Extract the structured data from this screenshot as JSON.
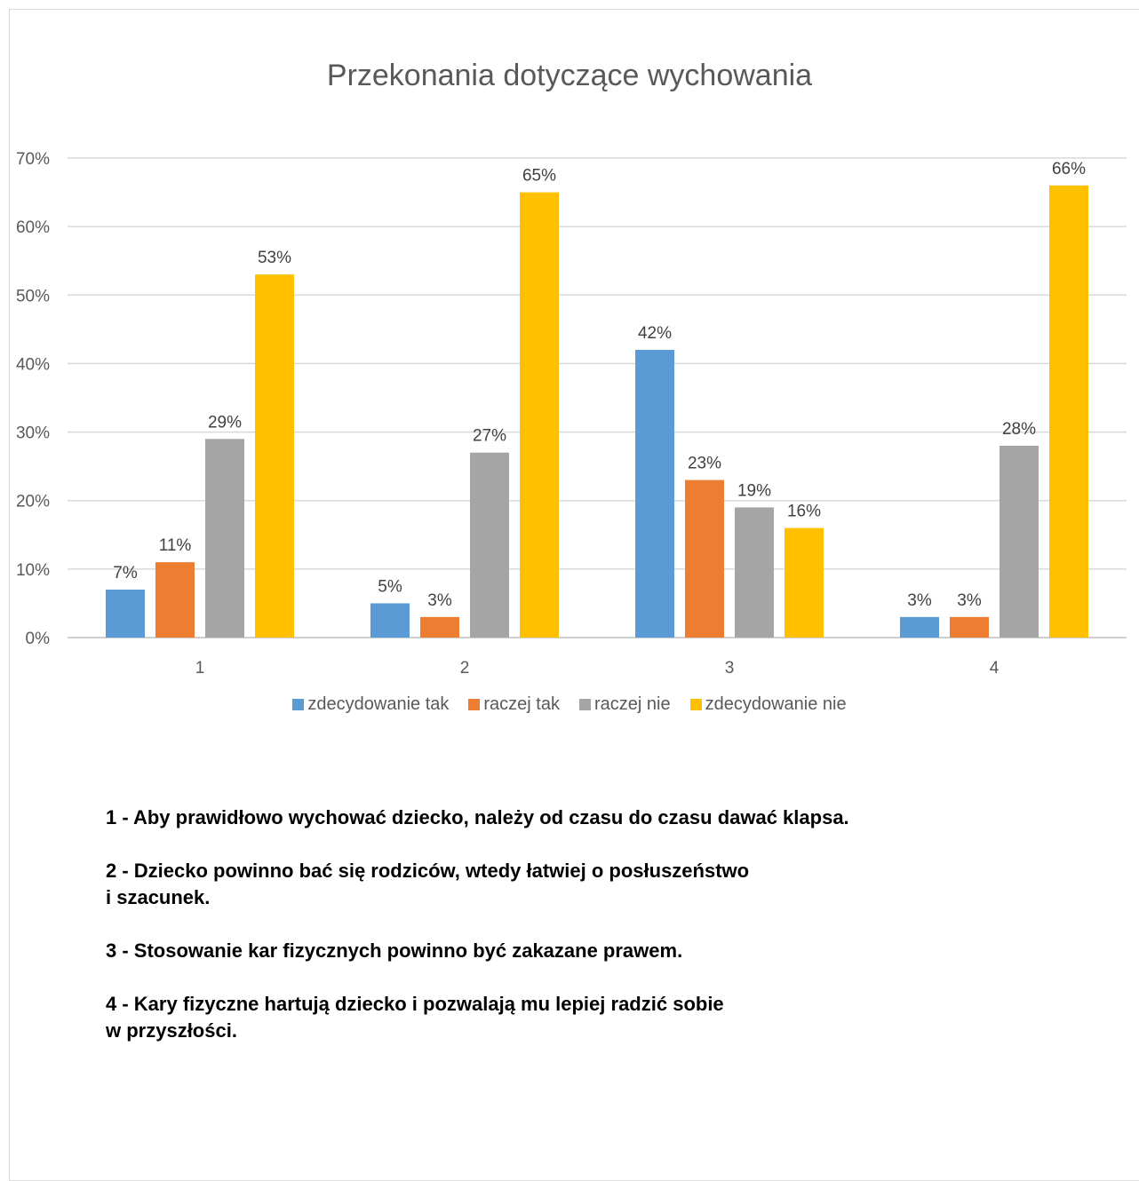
{
  "chart_data": {
    "type": "bar",
    "title": "Przekonania dotyczące wychowania",
    "categories": [
      "1",
      "2",
      "3",
      "4"
    ],
    "ylim": [
      0,
      70
    ],
    "y_ticks": [
      "0%",
      "10%",
      "20%",
      "30%",
      "40%",
      "50%",
      "60%",
      "70%"
    ],
    "grid": true,
    "legend_position": "bottom",
    "series": [
      {
        "name": "zdecydowanie tak",
        "color": "#5b9bd5",
        "values": [
          7,
          5,
          42,
          3
        ],
        "labels": [
          "7%",
          "5%",
          "42%",
          "3%"
        ]
      },
      {
        "name": "raczej tak",
        "color": "#ed7d31",
        "values": [
          11,
          3,
          23,
          3
        ],
        "labels": [
          "11%",
          "3%",
          "23%",
          "3%"
        ]
      },
      {
        "name": "raczej nie",
        "color": "#a5a5a5",
        "values": [
          29,
          27,
          19,
          28
        ],
        "labels": [
          "29%",
          "27%",
          "19%",
          "28%"
        ]
      },
      {
        "name": "zdecydowanie nie",
        "color": "#ffc000",
        "values": [
          53,
          65,
          16,
          66
        ],
        "labels": [
          "53%",
          "65%",
          "16%",
          "66%"
        ]
      }
    ]
  },
  "notes": [
    {
      "line1": "1 - Aby prawidłowo wychować dziecko, należy od czasu do czasu dawać klapsa.",
      "line2": ""
    },
    {
      "line1": "2 - Dziecko powinno bać się rodziców, wtedy łatwiej o posłuszeństwo",
      "line2": "i szacunek."
    },
    {
      "line1": "3 - Stosowanie kar fizycznych powinno być zakazane prawem.",
      "line2": ""
    },
    {
      "line1": "4 - Kary fizyczne hartują dziecko i pozwalają mu lepiej radzić sobie",
      "line2": "w przyszłości."
    }
  ]
}
